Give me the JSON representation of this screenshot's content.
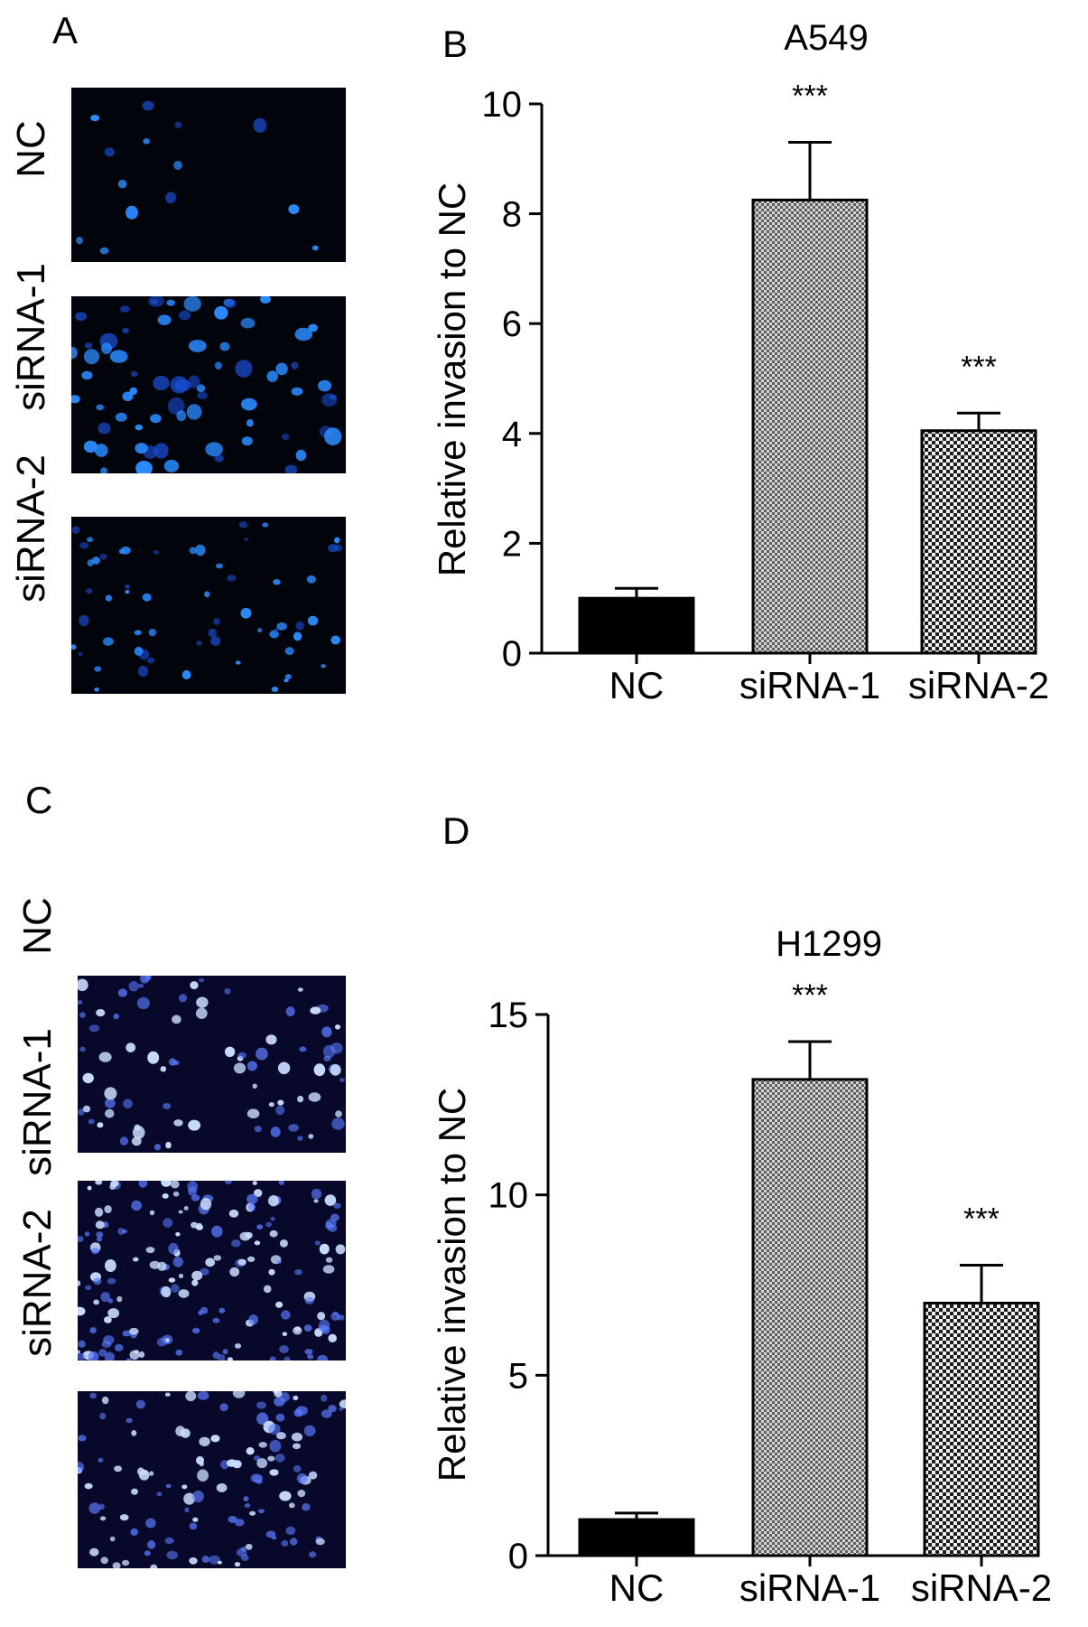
{
  "panels": {
    "a": {
      "letter": "A",
      "rows": [
        "NC",
        "siRNA-1",
        "siRNA-2"
      ]
    },
    "b": {
      "letter": "B"
    },
    "c": {
      "letter": "C",
      "rows": [
        "NC",
        "siRNA-1",
        "siRNA-2"
      ]
    },
    "d": {
      "letter": "D"
    }
  },
  "colors": {
    "nc_bar": "#000000",
    "sirna1_bar": "#9a9a9a",
    "sirna2_bar": "#555555",
    "cell_blue": "#2a8cff",
    "cell_dim": "#1b4fd8"
  },
  "chart_data": [
    {
      "type": "bar",
      "title": "A549",
      "ylabel": "Relative invasion to NC",
      "xlabel": "",
      "categories": [
        "NC",
        "siRNA-1",
        "siRNA-2"
      ],
      "values": [
        1.0,
        8.25,
        4.05
      ],
      "errors": [
        0.18,
        1.05,
        0.32
      ],
      "annotations": [
        "",
        "***",
        "***"
      ],
      "ylim": [
        0,
        10
      ],
      "yticks": [
        "0",
        "2",
        "4",
        "6",
        "8",
        "10"
      ],
      "grid": false
    },
    {
      "type": "bar",
      "title": "H1299",
      "ylabel": "Relative invasion to NC",
      "xlabel": "",
      "categories": [
        "NC",
        "siRNA-1",
        "siRNA-2"
      ],
      "values": [
        1.0,
        13.2,
        7.0
      ],
      "errors": [
        0.18,
        1.05,
        1.05
      ],
      "annotations": [
        "",
        "***",
        "***"
      ],
      "ylim": [
        0,
        15
      ],
      "yticks": [
        "0",
        "5",
        "10",
        "15"
      ],
      "grid": false
    }
  ]
}
